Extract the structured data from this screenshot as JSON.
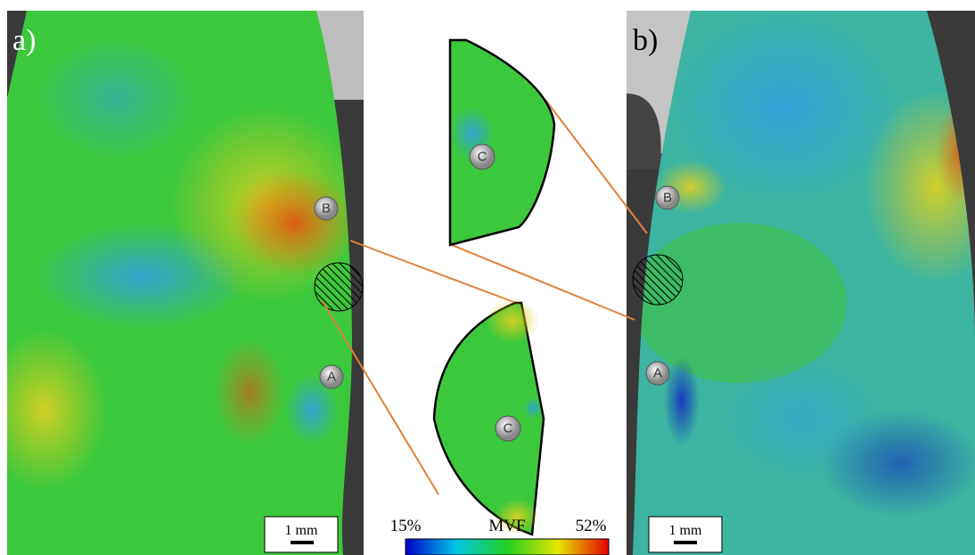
{
  "panels": [
    {
      "label": "a)",
      "markers": [
        "B",
        "A"
      ],
      "scale_bar": "1 mm"
    },
    {
      "label": "b)",
      "markers": [
        "B",
        "A"
      ],
      "scale_bar": "1 mm"
    }
  ],
  "insets": [
    {
      "marker": "C"
    },
    {
      "marker": "C"
    }
  ],
  "colorbar": {
    "min_label": "15%",
    "title": "MVF",
    "max_label": "52%"
  }
}
